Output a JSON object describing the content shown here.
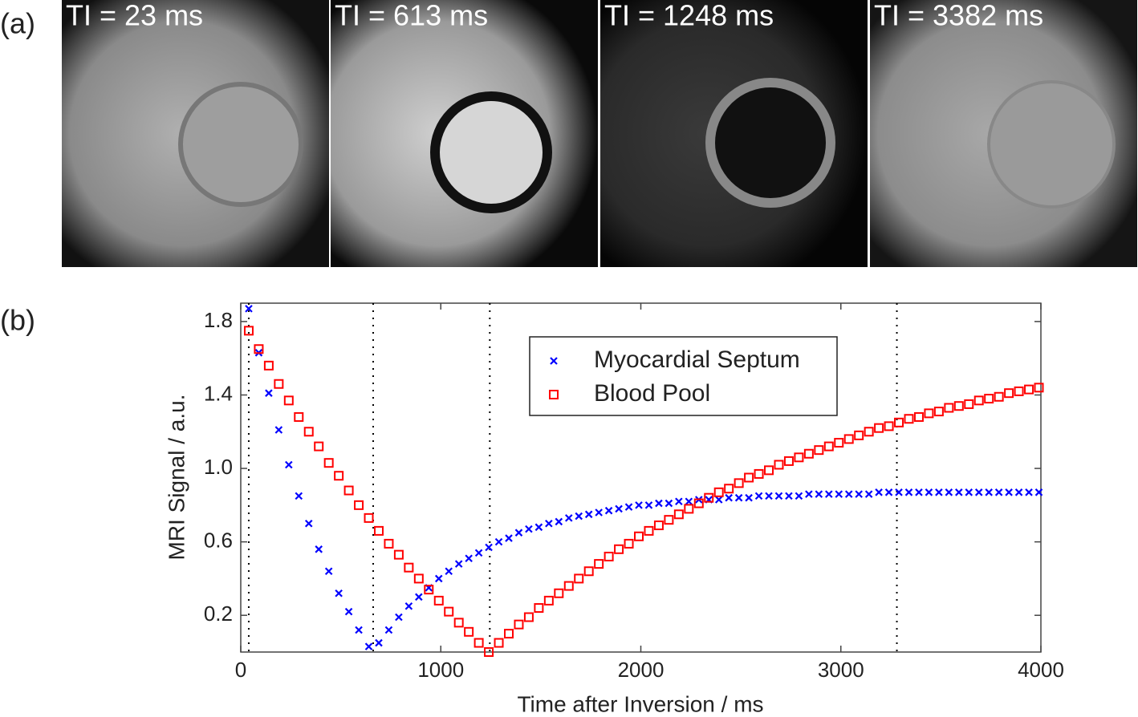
{
  "panel_labels": [
    "(a)",
    "(b)"
  ],
  "images": [
    {
      "caption": "TI = 23 ms"
    },
    {
      "caption": "TI = 613 ms"
    },
    {
      "caption": "TI = 1248 ms"
    },
    {
      "caption": "TI = 3382 ms"
    }
  ],
  "chart_data": {
    "type": "scatter",
    "x_label": "Time after Inversion / ms",
    "y_label": "MRI Signal / a.u.",
    "x": [
      40,
      90,
      140,
      190,
      240,
      290,
      340,
      390,
      440,
      490,
      540,
      590,
      640,
      690,
      740,
      790,
      840,
      890,
      940,
      990,
      1040,
      1090,
      1140,
      1190,
      1240,
      1290,
      1340,
      1390,
      1440,
      1490,
      1540,
      1590,
      1640,
      1690,
      1740,
      1790,
      1840,
      1890,
      1940,
      1990,
      2040,
      2090,
      2140,
      2190,
      2240,
      2290,
      2340,
      2390,
      2440,
      2490,
      2540,
      2590,
      2640,
      2690,
      2740,
      2790,
      2840,
      2890,
      2940,
      2990,
      3040,
      3090,
      3140,
      3190,
      3240,
      3290,
      3340,
      3390,
      3440,
      3490,
      3540,
      3590,
      3640,
      3690,
      3740,
      3790,
      3840,
      3890,
      3940,
      3990
    ],
    "series": [
      {
        "name": "Myocardial Septum",
        "color": "#0000ff",
        "marker": "x",
        "values": [
          1.87,
          1.63,
          1.41,
          1.21,
          1.02,
          0.85,
          0.7,
          0.56,
          0.44,
          0.32,
          0.22,
          0.12,
          0.03,
          0.05,
          0.12,
          0.19,
          0.25,
          0.3,
          0.35,
          0.4,
          0.44,
          0.48,
          0.51,
          0.54,
          0.57,
          0.6,
          0.62,
          0.65,
          0.67,
          0.68,
          0.7,
          0.71,
          0.73,
          0.74,
          0.75,
          0.76,
          0.77,
          0.78,
          0.79,
          0.8,
          0.8,
          0.81,
          0.81,
          0.82,
          0.82,
          0.83,
          0.83,
          0.83,
          0.84,
          0.84,
          0.84,
          0.85,
          0.85,
          0.85,
          0.85,
          0.85,
          0.86,
          0.86,
          0.86,
          0.86,
          0.86,
          0.86,
          0.86,
          0.87,
          0.87,
          0.87,
          0.87,
          0.87,
          0.87,
          0.87,
          0.87,
          0.87,
          0.87,
          0.87,
          0.87,
          0.87,
          0.87,
          0.87,
          0.87,
          0.87
        ]
      },
      {
        "name": "Blood Pool",
        "color": "#ff0000",
        "marker": "square",
        "values": [
          1.75,
          1.65,
          1.56,
          1.46,
          1.37,
          1.28,
          1.2,
          1.12,
          1.03,
          0.96,
          0.88,
          0.8,
          0.73,
          0.66,
          0.59,
          0.53,
          0.46,
          0.4,
          0.34,
          0.28,
          0.22,
          0.16,
          0.11,
          0.05,
          0.0,
          0.05,
          0.1,
          0.15,
          0.19,
          0.24,
          0.28,
          0.32,
          0.36,
          0.4,
          0.44,
          0.48,
          0.52,
          0.56,
          0.59,
          0.63,
          0.66,
          0.69,
          0.72,
          0.75,
          0.78,
          0.81,
          0.84,
          0.87,
          0.89,
          0.92,
          0.95,
          0.97,
          0.99,
          1.02,
          1.04,
          1.06,
          1.08,
          1.1,
          1.12,
          1.14,
          1.16,
          1.18,
          1.2,
          1.22,
          1.23,
          1.25,
          1.27,
          1.28,
          1.3,
          1.31,
          1.33,
          1.34,
          1.35,
          1.37,
          1.38,
          1.39,
          1.41,
          1.42,
          1.43,
          1.44
        ]
      }
    ],
    "vlines": [
      40,
      662,
      1245,
      3280
    ],
    "xlim": [
      0,
      4000
    ],
    "xticks": [
      0,
      1000,
      2000,
      3000,
      4000
    ],
    "ylim": [
      0,
      1.9
    ],
    "yticks": [
      0.2,
      0.6,
      {
        "value": 1.0,
        "label": "1.0"
      },
      1.4,
      1.8
    ],
    "legend": "upper-center"
  }
}
